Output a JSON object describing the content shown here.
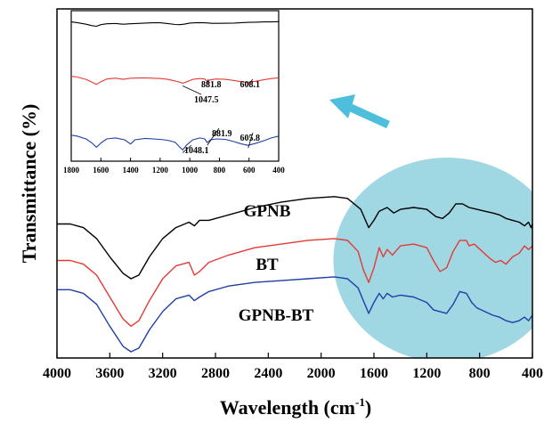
{
  "chart_data": {
    "type": "line",
    "title": "",
    "xlabel": "Wavelength (cm",
    "xlabel_sup": "-1",
    "xlabel_close": ")",
    "ylabel": "Transmittance (%)",
    "xlim": [
      4000,
      400
    ],
    "x_reversed": true,
    "y_ticks_shown": false,
    "grid": false,
    "x_ticks": [
      4000,
      3600,
      3200,
      2800,
      2400,
      2000,
      1600,
      1200,
      800,
      400
    ],
    "highlight": {
      "shape": "ellipse",
      "color": "#9fd7e2",
      "region_x": [
        1850,
        400
      ]
    },
    "arrow": {
      "color": "#4dbfdd",
      "direction": "up-left"
    },
    "series": [
      {
        "name": "GPNB",
        "color": "#000000",
        "points": [
          [
            4000,
            0.7
          ],
          [
            3900,
            0.7
          ],
          [
            3800,
            0.68
          ],
          [
            3700,
            0.62
          ],
          [
            3600,
            0.52
          ],
          [
            3500,
            0.43
          ],
          [
            3440,
            0.4
          ],
          [
            3380,
            0.42
          ],
          [
            3300,
            0.52
          ],
          [
            3200,
            0.62
          ],
          [
            3100,
            0.68
          ],
          [
            3000,
            0.71
          ],
          [
            2960,
            0.69
          ],
          [
            2920,
            0.72
          ],
          [
            2850,
            0.72
          ],
          [
            2700,
            0.75
          ],
          [
            2500,
            0.79
          ],
          [
            2300,
            0.82
          ],
          [
            2100,
            0.84
          ],
          [
            1900,
            0.85
          ],
          [
            1800,
            0.84
          ],
          [
            1700,
            0.78
          ],
          [
            1640,
            0.68
          ],
          [
            1600,
            0.72
          ],
          [
            1560,
            0.77
          ],
          [
            1500,
            0.79
          ],
          [
            1450,
            0.76
          ],
          [
            1400,
            0.78
          ],
          [
            1300,
            0.79
          ],
          [
            1200,
            0.78
          ],
          [
            1130,
            0.74
          ],
          [
            1080,
            0.73
          ],
          [
            1030,
            0.76
          ],
          [
            980,
            0.81
          ],
          [
            930,
            0.81
          ],
          [
            880,
            0.79
          ],
          [
            820,
            0.78
          ],
          [
            760,
            0.77
          ],
          [
            700,
            0.76
          ],
          [
            650,
            0.75
          ],
          [
            600,
            0.73
          ],
          [
            550,
            0.72
          ],
          [
            500,
            0.71
          ],
          [
            460,
            0.69
          ],
          [
            430,
            0.71
          ],
          [
            410,
            0.68
          ],
          [
            400,
            0.7
          ]
        ]
      },
      {
        "name": "BT",
        "color": "#e53935",
        "points": [
          [
            4000,
            0.5
          ],
          [
            3900,
            0.5
          ],
          [
            3800,
            0.48
          ],
          [
            3700,
            0.42
          ],
          [
            3600,
            0.3
          ],
          [
            3500,
            0.18
          ],
          [
            3440,
            0.14
          ],
          [
            3380,
            0.17
          ],
          [
            3300,
            0.28
          ],
          [
            3200,
            0.4
          ],
          [
            3100,
            0.47
          ],
          [
            3000,
            0.49
          ],
          [
            2960,
            0.42
          ],
          [
            2920,
            0.44
          ],
          [
            2850,
            0.49
          ],
          [
            2700,
            0.53
          ],
          [
            2500,
            0.57
          ],
          [
            2300,
            0.59
          ],
          [
            2100,
            0.61
          ],
          [
            1900,
            0.62
          ],
          [
            1800,
            0.61
          ],
          [
            1720,
            0.55
          ],
          [
            1680,
            0.45
          ],
          [
            1640,
            0.38
          ],
          [
            1600,
            0.46
          ],
          [
            1560,
            0.57
          ],
          [
            1530,
            0.52
          ],
          [
            1500,
            0.56
          ],
          [
            1460,
            0.53
          ],
          [
            1400,
            0.58
          ],
          [
            1300,
            0.59
          ],
          [
            1200,
            0.57
          ],
          [
            1150,
            0.5
          ],
          [
            1100,
            0.44
          ],
          [
            1050,
            0.46
          ],
          [
            1000,
            0.55
          ],
          [
            950,
            0.61
          ],
          [
            900,
            0.61
          ],
          [
            880,
            0.58
          ],
          [
            840,
            0.59
          ],
          [
            780,
            0.55
          ],
          [
            720,
            0.51
          ],
          [
            680,
            0.49
          ],
          [
            640,
            0.5
          ],
          [
            600,
            0.48
          ],
          [
            550,
            0.52
          ],
          [
            500,
            0.54
          ],
          [
            460,
            0.58
          ],
          [
            430,
            0.56
          ],
          [
            400,
            0.58
          ]
        ]
      },
      {
        "name": "GPNB-BT",
        "color": "#1e3fa8",
        "points": [
          [
            4000,
            0.34
          ],
          [
            3900,
            0.34
          ],
          [
            3800,
            0.32
          ],
          [
            3700,
            0.26
          ],
          [
            3600,
            0.14
          ],
          [
            3500,
            0.03
          ],
          [
            3440,
            0.0
          ],
          [
            3380,
            0.02
          ],
          [
            3300,
            0.12
          ],
          [
            3200,
            0.22
          ],
          [
            3100,
            0.29
          ],
          [
            3000,
            0.31
          ],
          [
            2960,
            0.28
          ],
          [
            2920,
            0.3
          ],
          [
            2850,
            0.33
          ],
          [
            2700,
            0.36
          ],
          [
            2500,
            0.38
          ],
          [
            2300,
            0.39
          ],
          [
            2100,
            0.4
          ],
          [
            1900,
            0.41
          ],
          [
            1800,
            0.4
          ],
          [
            1720,
            0.35
          ],
          [
            1680,
            0.28
          ],
          [
            1640,
            0.21
          ],
          [
            1600,
            0.27
          ],
          [
            1560,
            0.32
          ],
          [
            1530,
            0.29
          ],
          [
            1500,
            0.32
          ],
          [
            1460,
            0.3
          ],
          [
            1400,
            0.31
          ],
          [
            1300,
            0.3
          ],
          [
            1200,
            0.27
          ],
          [
            1150,
            0.23
          ],
          [
            1100,
            0.22
          ],
          [
            1050,
            0.21
          ],
          [
            1000,
            0.26
          ],
          [
            950,
            0.33
          ],
          [
            900,
            0.32
          ],
          [
            860,
            0.27
          ],
          [
            820,
            0.24
          ],
          [
            760,
            0.22
          ],
          [
            700,
            0.2
          ],
          [
            650,
            0.19
          ],
          [
            600,
            0.17
          ],
          [
            550,
            0.16
          ],
          [
            500,
            0.17
          ],
          [
            460,
            0.19
          ],
          [
            430,
            0.17
          ],
          [
            400,
            0.2
          ]
        ]
      }
    ],
    "inset": {
      "xlim": [
        1800,
        400
      ],
      "x_ticks": [
        1800,
        1600,
        1400,
        1200,
        1000,
        800,
        600,
        400
      ],
      "annotations": [
        {
          "text": "881.8",
          "series": 1,
          "x": 881.8
        },
        {
          "text": "608.1",
          "series": 1,
          "x": 608.1
        },
        {
          "text": "1047.5",
          "series": 1,
          "x": 1047.5
        },
        {
          "text": "881.9",
          "series": 2,
          "x": 881.9
        },
        {
          "text": "605.8",
          "series": 2,
          "x": 605.8
        },
        {
          "text": "1048.1",
          "series": 2,
          "x": 1048.1
        }
      ],
      "series": [
        {
          "name": "GPNB",
          "color": "#000000",
          "points": [
            [
              1800,
              0.9
            ],
            [
              1760,
              0.87
            ],
            [
              1700,
              0.8
            ],
            [
              1660,
              0.74
            ],
            [
              1630,
              0.71
            ],
            [
              1600,
              0.78
            ],
            [
              1560,
              0.82
            ],
            [
              1500,
              0.83
            ],
            [
              1450,
              0.8
            ],
            [
              1400,
              0.82
            ],
            [
              1300,
              0.85
            ],
            [
              1250,
              0.86
            ],
            [
              1200,
              0.86
            ],
            [
              1150,
              0.83
            ],
            [
              1100,
              0.79
            ],
            [
              1070,
              0.78
            ],
            [
              1040,
              0.8
            ],
            [
              1000,
              0.85
            ],
            [
              950,
              0.87
            ],
            [
              900,
              0.86
            ],
            [
              850,
              0.84
            ],
            [
              800,
              0.84
            ],
            [
              700,
              0.85
            ],
            [
              650,
              0.87
            ],
            [
              600,
              0.88
            ],
            [
              550,
              0.89
            ],
            [
              500,
              0.9
            ],
            [
              450,
              0.9
            ],
            [
              400,
              0.91
            ]
          ]
        },
        {
          "name": "BT",
          "color": "#e53935",
          "points": [
            [
              1800,
              0.6
            ],
            [
              1760,
              0.58
            ],
            [
              1700,
              0.52
            ],
            [
              1660,
              0.45
            ],
            [
              1630,
              0.39
            ],
            [
              1600,
              0.46
            ],
            [
              1560,
              0.53
            ],
            [
              1500,
              0.55
            ],
            [
              1450,
              0.52
            ],
            [
              1400,
              0.55
            ],
            [
              1300,
              0.56
            ],
            [
              1200,
              0.54
            ],
            [
              1150,
              0.52
            ],
            [
              1100,
              0.48
            ],
            [
              1070,
              0.45
            ],
            [
              1047,
              0.42
            ],
            [
              1020,
              0.46
            ],
            [
              980,
              0.52
            ],
            [
              930,
              0.54
            ],
            [
              900,
              0.53
            ],
            [
              882,
              0.47
            ],
            [
              860,
              0.51
            ],
            [
              820,
              0.53
            ],
            [
              760,
              0.52
            ],
            [
              700,
              0.49
            ],
            [
              650,
              0.46
            ],
            [
              608,
              0.44
            ],
            [
              560,
              0.47
            ],
            [
              500,
              0.51
            ],
            [
              450,
              0.54
            ],
            [
              400,
              0.56
            ]
          ]
        },
        {
          "name": "GPNB-BT",
          "color": "#1e3fa8",
          "points": [
            [
              1800,
              0.35
            ],
            [
              1760,
              0.33
            ],
            [
              1700,
              0.27
            ],
            [
              1660,
              0.18
            ],
            [
              1630,
              0.09
            ],
            [
              1600,
              0.18
            ],
            [
              1560,
              0.27
            ],
            [
              1500,
              0.29
            ],
            [
              1440,
              0.25
            ],
            [
              1400,
              0.16
            ],
            [
              1370,
              0.25
            ],
            [
              1300,
              0.28
            ],
            [
              1200,
              0.26
            ],
            [
              1150,
              0.24
            ],
            [
              1100,
              0.2
            ],
            [
              1070,
              0.1
            ],
            [
              1048,
              0.03
            ],
            [
              1020,
              0.14
            ],
            [
              980,
              0.25
            ],
            [
              930,
              0.29
            ],
            [
              900,
              0.27
            ],
            [
              882,
              0.19
            ],
            [
              860,
              0.25
            ],
            [
              820,
              0.27
            ],
            [
              760,
              0.26
            ],
            [
              700,
              0.21
            ],
            [
              650,
              0.16
            ],
            [
              606,
              0.13
            ],
            [
              560,
              0.17
            ],
            [
              500,
              0.23
            ],
            [
              450,
              0.29
            ],
            [
              400,
              0.33
            ]
          ]
        }
      ]
    }
  }
}
